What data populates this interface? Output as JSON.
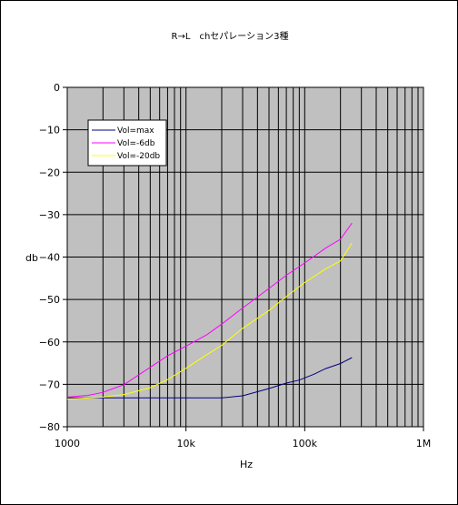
{
  "chart_data": {
    "type": "line",
    "title": "R→L　chセパレーション3種",
    "xlabel": "Hz",
    "ylabel": "db",
    "xscale": "log",
    "xlim": [
      1000,
      1000000
    ],
    "ylim": [
      -80,
      0
    ],
    "x_tick_labels": [
      "1000",
      "10k",
      "100k",
      "1M"
    ],
    "y_tick_labels": [
      "0",
      "−10",
      "−20",
      "−30",
      "−40",
      "−50",
      "−60",
      "−70",
      "−80"
    ],
    "grid": true,
    "plot_background": "#c0c0c0",
    "legend_position": "top-left",
    "legend_background": "#ffffff",
    "series": [
      {
        "name": "Vol=max",
        "color": "#000080",
        "x": [
          1000,
          2000,
          5000,
          10000,
          20000,
          30000,
          50000,
          70000,
          90000,
          120000,
          150000,
          200000,
          250000
        ],
        "values": [
          -73.2,
          -73.2,
          -73.2,
          -73.2,
          -73.2,
          -72.7,
          -71.0,
          -69.7,
          -69.0,
          -67.6,
          -66.3,
          -65.1,
          -63.7
        ]
      },
      {
        "name": "Vol=-6db",
        "color": "#ff00ff",
        "x": [
          1000,
          1500,
          2000,
          3000,
          5000,
          7000,
          10000,
          15000,
          20000,
          30000,
          50000,
          70000,
          100000,
          150000,
          200000,
          250000
        ],
        "values": [
          -73.0,
          -72.6,
          -71.9,
          -70.1,
          -66.0,
          -63.3,
          -61.0,
          -58.3,
          -55.8,
          -52.0,
          -47.4,
          -44.3,
          -41.4,
          -37.9,
          -35.8,
          -32.0
        ]
      },
      {
        "name": "Vol=-20db",
        "color": "#ffff00",
        "x": [
          1000,
          2000,
          3000,
          5000,
          7000,
          10000,
          15000,
          20000,
          30000,
          50000,
          70000,
          100000,
          150000,
          200000,
          250000
        ],
        "values": [
          -73.5,
          -73.0,
          -72.4,
          -70.8,
          -68.9,
          -66.2,
          -63.0,
          -60.8,
          -56.8,
          -52.6,
          -49.3,
          -46.0,
          -42.8,
          -40.9,
          -36.7
        ]
      }
    ]
  }
}
